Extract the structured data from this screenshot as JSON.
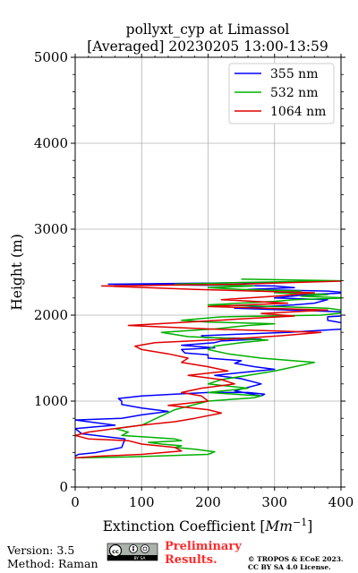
{
  "chart_data": {
    "type": "line",
    "title": "pollyxt_cyp at Limassol",
    "subtitle": "[Averaged] 20230205 13:00-13:59",
    "xlabel": "Extinction Coefficient [Mm⁻¹]",
    "xlabel_main": "Extinction Coefficient [",
    "xlabel_unit": "Mm",
    "xlabel_exp": "−1",
    "xlabel_end": "]",
    "ylabel": "Height (m)",
    "xlim": [
      0,
      400
    ],
    "ylim": [
      0,
      5000
    ],
    "xticks": [
      "0",
      "100",
      "200",
      "300",
      "400"
    ],
    "yticks": [
      "0",
      "1000",
      "2000",
      "3000",
      "4000",
      "5000"
    ],
    "grid": true,
    "legend_position": "top-right",
    "series": [
      {
        "name": "355 nm",
        "color": "#0000ff",
        "x": [
          0,
          5,
          30,
          70,
          75,
          10,
          0,
          30,
          60,
          0,
          70,
          100,
          140,
          100,
          70,
          70,
          65,
          100,
          150,
          200,
          260,
          285,
          280,
          240,
          280,
          250,
          210,
          260,
          300,
          270,
          240,
          250,
          200,
          200,
          165,
          160,
          210,
          160,
          210,
          220,
          280,
          250,
          195,
          190,
          250,
          320,
          405,
          410,
          380,
          380,
          420,
          400,
          240,
          330,
          360,
          380,
          300,
          350,
          410,
          380,
          260,
          330,
          300,
          50,
          300
        ],
        "y": [
          360,
          380,
          400,
          460,
          560,
          620,
          680,
          700,
          720,
          780,
          800,
          840,
          880,
          920,
          960,
          1000,
          1030,
          1060,
          1080,
          1100,
          1100,
          1080,
          1060,
          1120,
          1200,
          1260,
          1300,
          1340,
          1370,
          1400,
          1440,
          1470,
          1500,
          1540,
          1560,
          1600,
          1620,
          1650,
          1680,
          1700,
          1720,
          1730,
          1740,
          1760,
          1780,
          1800,
          1840,
          1900,
          1940,
          1980,
          2000,
          2040,
          2080,
          2120,
          2140,
          2180,
          2200,
          2240,
          2260,
          2280,
          2300,
          2320,
          2340,
          2360,
          2380
        ]
      },
      {
        "name": "532 nm",
        "color": "#00b000",
        "x": [
          0,
          80,
          200,
          210,
          180,
          150,
          160,
          130,
          110,
          160,
          150,
          110,
          70,
          80,
          60,
          100,
          150,
          200,
          270,
          280,
          200,
          260,
          200,
          220,
          260,
          300,
          330,
          360,
          280,
          230,
          200,
          210,
          250,
          290,
          230,
          170,
          130,
          210,
          260,
          300,
          200,
          160,
          220,
          370,
          420,
          380,
          300,
          200,
          300,
          330,
          410,
          340,
          380,
          300,
          340,
          250,
          200,
          270,
          150,
          250,
          400,
          250
        ],
        "y": [
          340,
          350,
          380,
          410,
          440,
          460,
          480,
          500,
          520,
          540,
          560,
          580,
          600,
          640,
          680,
          720,
          900,
          1000,
          1040,
          1060,
          1100,
          1150,
          1200,
          1250,
          1300,
          1350,
          1400,
          1450,
          1500,
          1550,
          1600,
          1640,
          1680,
          1710,
          1730,
          1750,
          1800,
          1840,
          1880,
          1900,
          1920,
          1940,
          1980,
          2000,
          2040,
          2080,
          2100,
          2120,
          2160,
          2180,
          2200,
          2220,
          2240,
          2260,
          2280,
          2300,
          2320,
          2340,
          2360,
          2380,
          2400,
          2420
        ]
      },
      {
        "name": "1064 nm",
        "color": "#e00000",
        "x": [
          0,
          40,
          100,
          160,
          150,
          100,
          80,
          20,
          0,
          20,
          60,
          100,
          150,
          180,
          220,
          200,
          140,
          200,
          190,
          160,
          190,
          240,
          220,
          170,
          230,
          200,
          160,
          170,
          140,
          100,
          90,
          120,
          230,
          310,
          370,
          200,
          80,
          170,
          260,
          330,
          280,
          380,
          200,
          320,
          220,
          300,
          360,
          180,
          40,
          250,
          330,
          420
        ],
        "y": [
          340,
          360,
          380,
          420,
          460,
          500,
          540,
          560,
          600,
          640,
          680,
          720,
          760,
          800,
          860,
          900,
          950,
          1000,
          1060,
          1100,
          1150,
          1200,
          1250,
          1300,
          1350,
          1400,
          1450,
          1500,
          1550,
          1600,
          1640,
          1680,
          1720,
          1760,
          1800,
          1840,
          1880,
          1920,
          1960,
          1990,
          2020,
          2060,
          2100,
          2140,
          2180,
          2220,
          2260,
          2300,
          2340,
          2360,
          2380,
          2400
        ]
      }
    ]
  },
  "footer": {
    "version": "Version: 3.5",
    "method": "Method: Raman",
    "preliminary_line1": "Preliminary",
    "preliminary_line2": "Results.",
    "copyright_line1": "© TROPOS & ECoE 2023.",
    "copyright_line2": "CC BY SA 4.0 License.",
    "license_badge_text": "BY SA",
    "preliminary_color": "#ff2a2a"
  }
}
